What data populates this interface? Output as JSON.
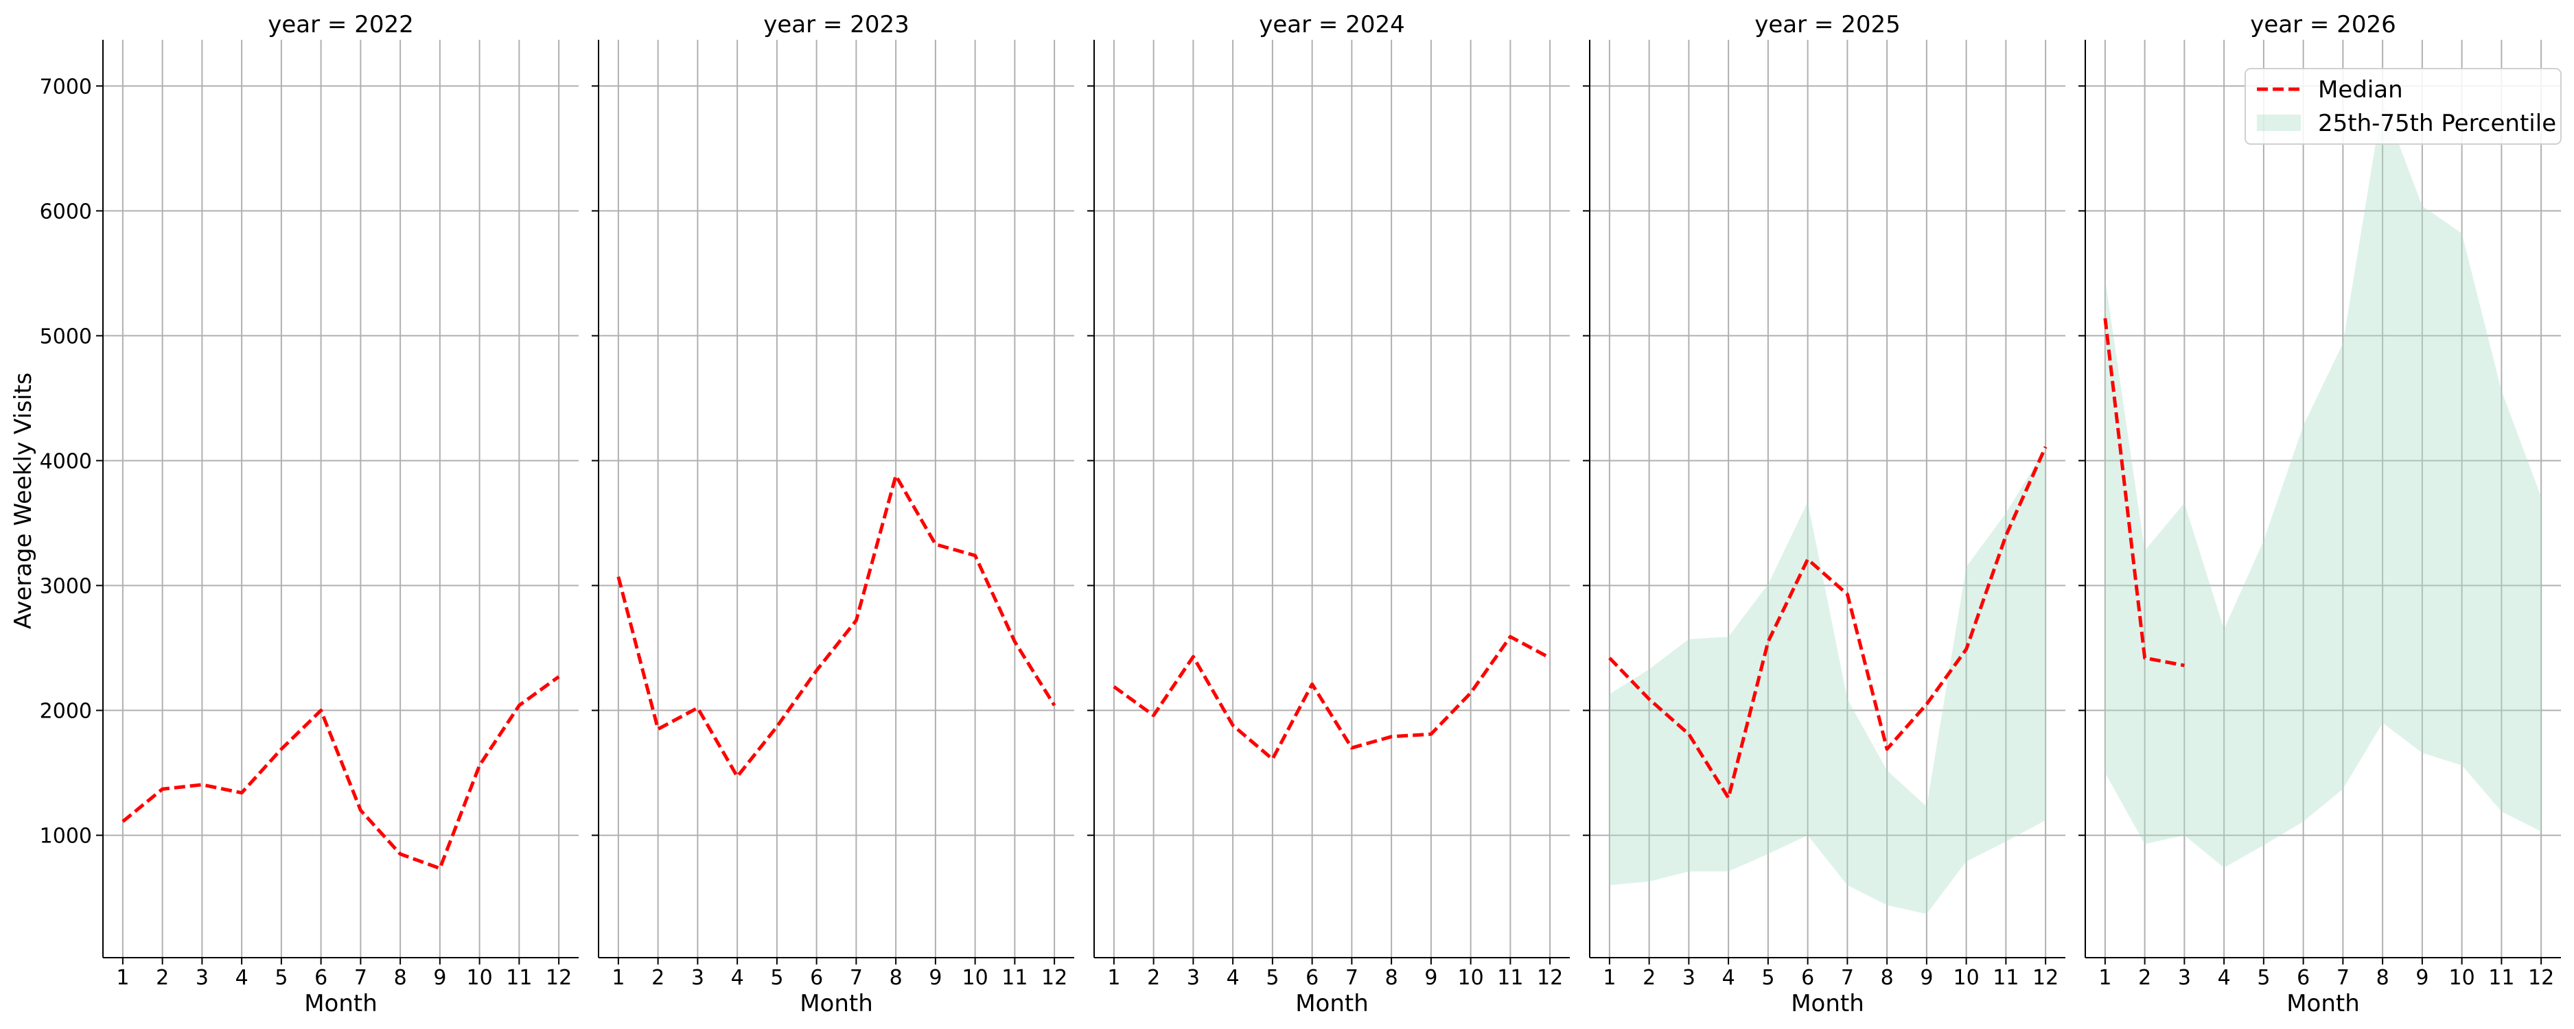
{
  "chart_data": {
    "type": "line",
    "facet_titles": [
      "year = 2022",
      "year = 2023",
      "year = 2024",
      "year = 2025",
      "year = 2026"
    ],
    "xlabel": "Month",
    "ylabel": "Average Weekly Visits",
    "x_ticks": [
      1,
      2,
      3,
      4,
      5,
      6,
      7,
      8,
      9,
      10,
      11,
      12
    ],
    "y_ticks": [
      1000,
      2000,
      3000,
      4000,
      5000,
      6000,
      7000
    ],
    "xlim": [
      0.5,
      12.5
    ],
    "ylim": [
      20,
      7370
    ],
    "grid": true,
    "legend": {
      "placement": "top-right",
      "entries": [
        "Median",
        "25th-75th Percentile"
      ]
    },
    "colors": {
      "median": "#ff0000",
      "band": "#a8dcc8"
    },
    "panels": [
      {
        "median": [
          [
            1,
            1110
          ],
          [
            2,
            1370
          ],
          [
            3,
            1405
          ],
          [
            4,
            1340
          ],
          [
            5,
            1690
          ],
          [
            6,
            2000
          ],
          [
            7,
            1200
          ],
          [
            8,
            850
          ],
          [
            9,
            735
          ],
          [
            10,
            1560
          ],
          [
            11,
            2040
          ],
          [
            12,
            2270
          ]
        ]
      },
      {
        "median": [
          [
            1,
            3070
          ],
          [
            2,
            1850
          ],
          [
            3,
            2020
          ],
          [
            4,
            1470
          ],
          [
            5,
            1870
          ],
          [
            6,
            2320
          ],
          [
            7,
            2720
          ],
          [
            8,
            3880
          ],
          [
            9,
            3330
          ],
          [
            10,
            3240
          ],
          [
            11,
            2550
          ],
          [
            12,
            2040
          ]
        ]
      },
      {
        "median": [
          [
            1,
            2190
          ],
          [
            2,
            1960
          ],
          [
            3,
            2430
          ],
          [
            4,
            1880
          ],
          [
            5,
            1610
          ],
          [
            6,
            2210
          ],
          [
            7,
            1700
          ],
          [
            8,
            1790
          ],
          [
            9,
            1810
          ],
          [
            10,
            2140
          ],
          [
            11,
            2590
          ],
          [
            12,
            2420
          ]
        ]
      },
      {
        "median": [
          [
            1,
            2420
          ],
          [
            2,
            2090
          ],
          [
            3,
            1810
          ],
          [
            4,
            1300
          ],
          [
            5,
            2550
          ],
          [
            6,
            3210
          ],
          [
            7,
            2930
          ],
          [
            8,
            1690
          ],
          [
            9,
            2050
          ],
          [
            10,
            2490
          ],
          [
            11,
            3400
          ],
          [
            12,
            4110
          ]
        ],
        "band": {
          "x": [
            1,
            2,
            3,
            4,
            5,
            6,
            7,
            8,
            9,
            10,
            11,
            12
          ],
          "lower": [
            600,
            630,
            710,
            710,
            850,
            1000,
            600,
            440,
            370,
            790,
            950,
            1120
          ],
          "upper": [
            2130,
            2330,
            2570,
            2590,
            3010,
            3670,
            2090,
            1520,
            1230,
            3150,
            3580,
            4100
          ]
        }
      },
      {
        "median": [
          [
            1,
            5140
          ],
          [
            2,
            2420
          ],
          [
            3,
            2360
          ]
        ],
        "band": {
          "x": [
            1,
            2,
            3,
            4,
            5,
            6,
            7,
            8,
            9,
            10,
            11,
            12
          ],
          "lower": [
            1500,
            930,
            1000,
            740,
            920,
            1110,
            1370,
            1900,
            1660,
            1560,
            1190,
            1030
          ],
          "upper": [
            5460,
            3280,
            3660,
            2650,
            3360,
            4280,
            4940,
            6880,
            6040,
            5820,
            4560,
            3710
          ]
        }
      }
    ]
  }
}
